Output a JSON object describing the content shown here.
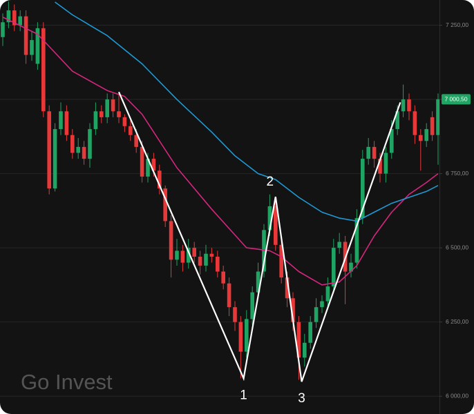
{
  "chart_data": {
    "type": "candlestick",
    "watermark": "Go Invest",
    "up_color": "#1fa463",
    "down_color": "#e8393a",
    "grid": true,
    "ylim": [
      5940,
      7335
    ],
    "yticks": [
      {
        "value": 7250,
        "label": "7 250,00"
      },
      {
        "value": 7000,
        "label": "7 000,00"
      },
      {
        "value": 6750,
        "label": "6 750,00"
      },
      {
        "value": 6500,
        "label": "6 500,00"
      },
      {
        "value": 6250,
        "label": "6 250,00"
      },
      {
        "value": 6000,
        "label": "6 000,00"
      }
    ],
    "last_price": {
      "value": 7000.5,
      "label": "7 000,50"
    },
    "open": [
      7210,
      7260,
      7300,
      7250,
      7280,
      7150,
      7120,
      7240,
      6960,
      6700,
      6900,
      6960,
      6880,
      6820,
      6840,
      6800,
      6900,
      6960,
      6940,
      7000,
      6960,
      6940,
      6910,
      6880,
      6840,
      6740,
      6800,
      6760,
      6700,
      6590,
      6460,
      6490,
      6450,
      6500,
      6470,
      6440,
      6480,
      6470,
      6420,
      6380,
      6300,
      6250,
      6150,
      6260,
      6350,
      6420,
      6560,
      6640,
      6510,
      6400,
      6330,
      6250,
      6130,
      6180,
      6250,
      6300,
      6320,
      6370,
      6500,
      6520,
      6420,
      6450,
      6600,
      6800,
      6840,
      6800,
      6750,
      6820,
      6900,
      6960,
      7000,
      6960,
      6880,
      6860,
      6940,
      6880
    ],
    "high": [
      7290,
      7330,
      7320,
      7300,
      7300,
      7230,
      7260,
      7260,
      6980,
      6920,
      6990,
      6980,
      6900,
      6870,
      6860,
      6920,
      6990,
      6980,
      7020,
      7020,
      7025,
      6950,
      6930,
      6900,
      6860,
      6820,
      6820,
      6780,
      6710,
      6610,
      6530,
      6510,
      6530,
      6520,
      6490,
      6510,
      6500,
      6490,
      6440,
      6400,
      6320,
      6270,
      6290,
      6370,
      6450,
      6580,
      6680,
      6660,
      6530,
      6420,
      6350,
      6270,
      6210,
      6270,
      6330,
      6340,
      6400,
      6530,
      6550,
      6540,
      6480,
      6630,
      6830,
      6870,
      6860,
      6820,
      6840,
      6930,
      6980,
      7050,
      7020,
      6980,
      6900,
      6920,
      6960,
      7020
    ],
    "low": [
      7180,
      7240,
      7230,
      7230,
      7120,
      7130,
      7100,
      6940,
      6680,
      6690,
      6880,
      6860,
      6800,
      6800,
      6780,
      6770,
      6880,
      6920,
      6920,
      6940,
      6920,
      6890,
      6860,
      6820,
      6720,
      6720,
      6740,
      6680,
      6570,
      6400,
      6440,
      6420,
      6430,
      6450,
      6410,
      6420,
      6450,
      6400,
      6360,
      6270,
      6220,
      6060,
      6130,
      6240,
      6330,
      6400,
      6540,
      6490,
      6380,
      6300,
      6220,
      6055,
      6100,
      6160,
      6230,
      6280,
      6300,
      6350,
      6480,
      6310,
      6400,
      6430,
      6580,
      6780,
      6770,
      6720,
      6720,
      6800,
      6880,
      6940,
      6930,
      6850,
      6760,
      6840,
      6860,
      6780
    ],
    "close": [
      7260,
      7300,
      7250,
      7280,
      7150,
      7200,
      7240,
      6960,
      6700,
      6900,
      6960,
      6880,
      6820,
      6840,
      6800,
      6900,
      6960,
      6940,
      7000,
      6960,
      6940,
      6910,
      6880,
      6840,
      6740,
      6800,
      6760,
      6700,
      6590,
      6460,
      6490,
      6450,
      6500,
      6470,
      6440,
      6480,
      6470,
      6420,
      6380,
      6300,
      6250,
      6150,
      6260,
      6350,
      6420,
      6560,
      6640,
      6510,
      6400,
      6330,
      6250,
      6130,
      6180,
      6250,
      6300,
      6320,
      6370,
      6500,
      6520,
      6420,
      6450,
      6600,
      6800,
      6840,
      6800,
      6750,
      6820,
      6900,
      6960,
      7000,
      6960,
      6880,
      6860,
      6900,
      6880,
      7000.5
    ],
    "moving_averages": [
      {
        "color": "#d6267e",
        "x": [
          0,
          6,
          12,
          18,
          21,
          24,
          30,
          36,
          42,
          46,
          48,
          51,
          55,
          58,
          61,
          64,
          67,
          70,
          73,
          75
        ],
        "values": [
          7277,
          7220,
          7095,
          7030,
          7010,
          6950,
          6770,
          6630,
          6500,
          6490,
          6470,
          6420,
          6375,
          6385,
          6440,
          6540,
          6620,
          6680,
          6720,
          6750
        ]
      },
      {
        "color": "#1e9ad6",
        "x": [
          9,
          12,
          18,
          24,
          30,
          36,
          40,
          44,
          47,
          51,
          55,
          58,
          61,
          64,
          67,
          70,
          73,
          75
        ],
        "values": [
          7328,
          7285,
          7215,
          7120,
          7000,
          6890,
          6810,
          6750,
          6730,
          6670,
          6620,
          6600,
          6590,
          6620,
          6650,
          6670,
          6690,
          6710
        ]
      }
    ],
    "pattern": {
      "color": "#ffffff",
      "x": [
        20,
        41.5,
        47,
        51.5,
        68.5
      ],
      "values": [
        7025,
        6060,
        6672,
        6049,
        6990
      ]
    },
    "annotations": [
      "1",
      "2",
      "3"
    ]
  }
}
